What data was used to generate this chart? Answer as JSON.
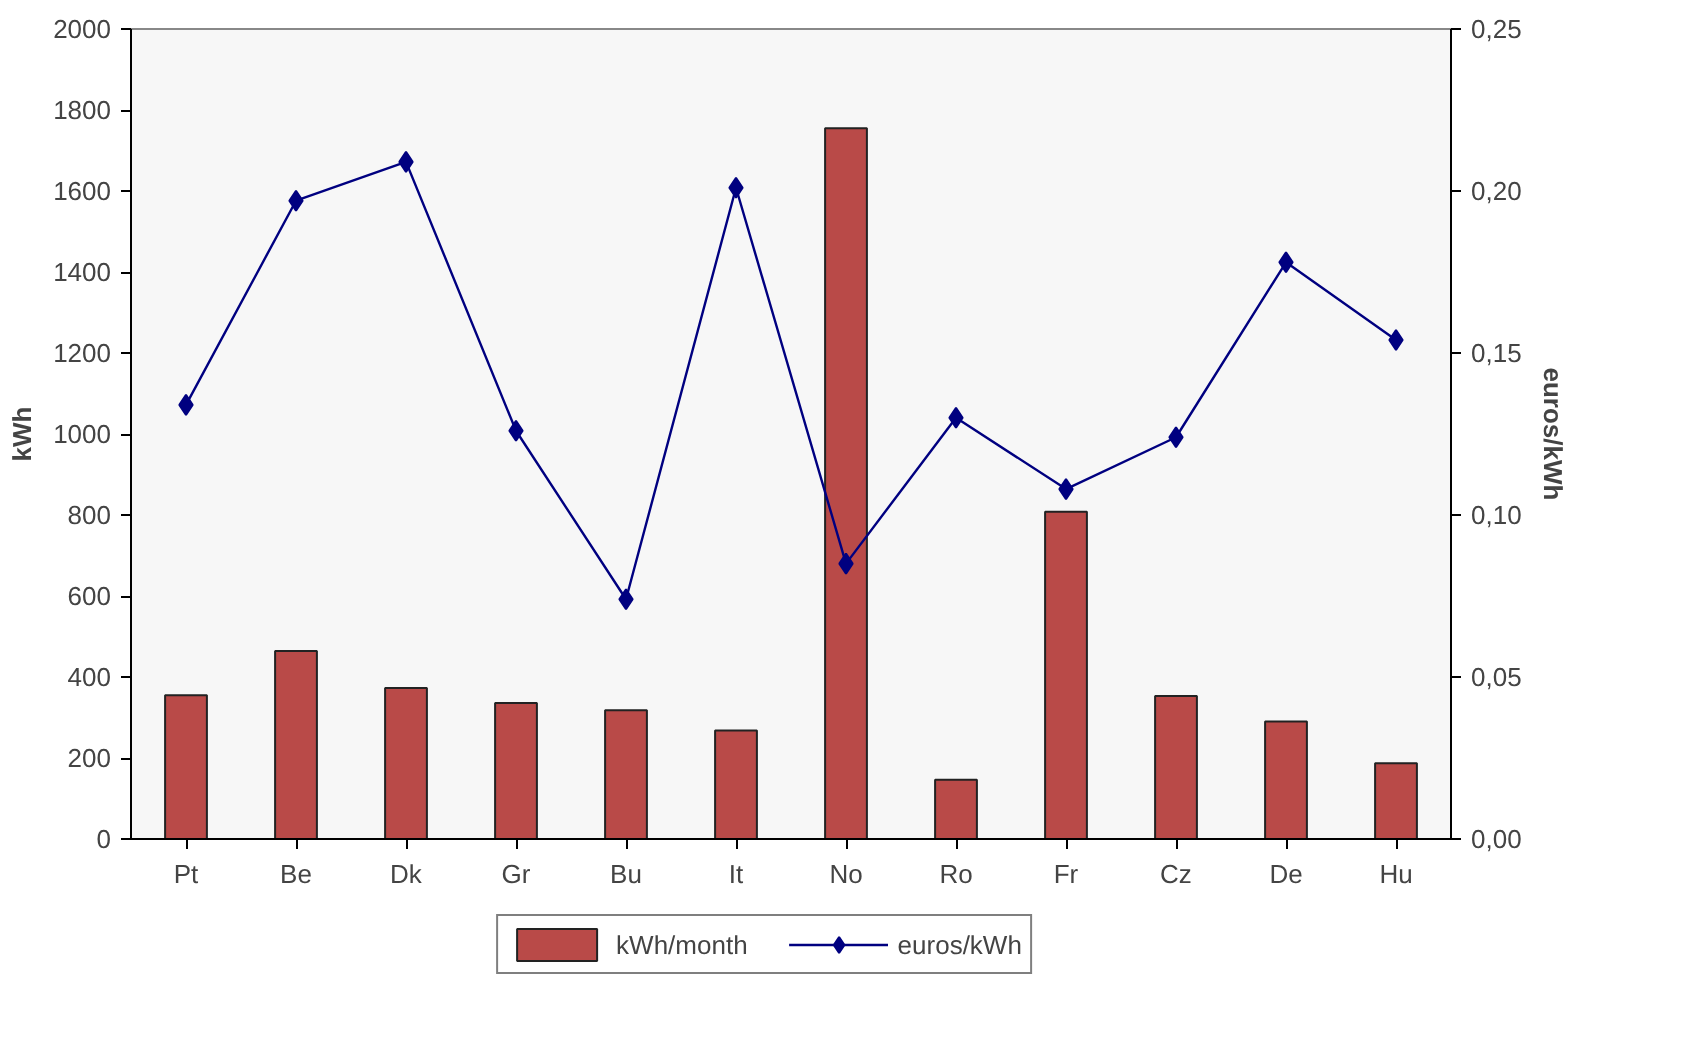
{
  "chart_data": {
    "type": "bar",
    "categories": [
      "Pt",
      "Be",
      "Dk",
      "Gr",
      "Bu",
      "It",
      "No",
      "Ro",
      "Fr",
      "Cz",
      "De",
      "Hu"
    ],
    "ylabel": "kWh",
    "y2label": "euros/kWh",
    "ylim": [
      0,
      2000
    ],
    "yticks": [
      0,
      200,
      400,
      600,
      800,
      1000,
      1200,
      1400,
      1600,
      1800,
      2000
    ],
    "y2lim": [
      0,
      0.25
    ],
    "y2ticks": [
      {
        "value": 0,
        "label": "0,00"
      },
      {
        "value": 0.05,
        "label": "0,05"
      },
      {
        "value": 0.1,
        "label": "0,10"
      },
      {
        "value": 0.15,
        "label": "0,15"
      },
      {
        "value": 0.2,
        "label": "0,20"
      },
      {
        "value": 0.25,
        "label": "0,25"
      }
    ],
    "series": [
      {
        "name": "kWh/month",
        "color": "#b94a48",
        "values": [
          355,
          464,
          373,
          336,
          318,
          268,
          1755,
          146,
          808,
          353,
          290,
          187
        ]
      },
      {
        "name": "euros/kWh",
        "type": "line",
        "axis": "y2",
        "color": "#000080",
        "marker": "diamond",
        "values": [
          0.134,
          0.197,
          0.209,
          0.126,
          0.074,
          0.201,
          0.085,
          0.13,
          0.108,
          0.124,
          0.178,
          0.154
        ]
      }
    ],
    "legend": "bottom",
    "grid": false
  }
}
